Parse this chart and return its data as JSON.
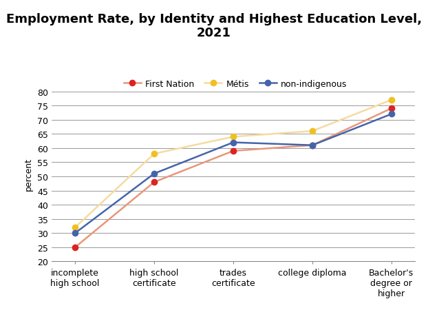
{
  "title": "Employment Rate, by Identity and Highest Education Level,\n2021",
  "ylabel": "percent",
  "categories": [
    "incomplete\nhigh school",
    "high school\ncertificate",
    "trades\ncertificate",
    "college diploma",
    "Bachelor's\ndegree or\nhigher"
  ],
  "series": [
    {
      "name": "First Nation",
      "values": [
        25,
        48,
        59,
        61,
        74
      ],
      "marker_color": "#DD2222",
      "line_color": "#E8967A",
      "marker": "o"
    },
    {
      "name": "Métis",
      "values": [
        32,
        58,
        64,
        66,
        77
      ],
      "marker_color": "#F0C020",
      "line_color": "#F5DBA0",
      "marker": "o"
    },
    {
      "name": "non-indigenous",
      "values": [
        30,
        51,
        62,
        61,
        72
      ],
      "marker_color": "#4464AA",
      "line_color": "#4464AA",
      "marker": "o"
    }
  ],
  "ylim": [
    20,
    82
  ],
  "yticks": [
    20,
    25,
    30,
    35,
    40,
    45,
    50,
    55,
    60,
    65,
    70,
    75,
    80
  ],
  "title_fontsize": 13,
  "legend_fontsize": 9,
  "tick_fontsize": 9,
  "ylabel_fontsize": 9,
  "background_color": "#FFFFFF",
  "grid_color": "#888888",
  "grid_linewidth": 0.6
}
